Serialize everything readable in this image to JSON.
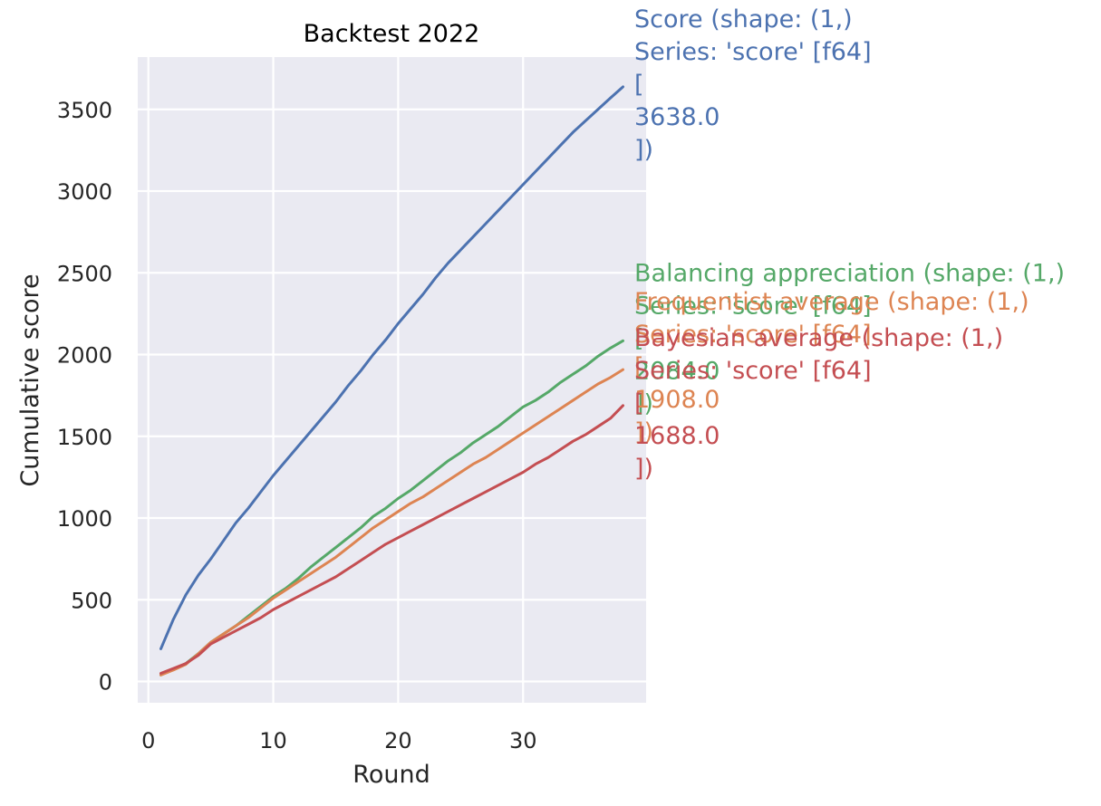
{
  "chart_data": {
    "type": "line",
    "title": "Backtest 2022",
    "xlabel": "Round",
    "ylabel": "Cumulative score",
    "xlim": [
      -0.85,
      39.85
    ],
    "ylim": [
      -130,
      3820
    ],
    "xticks": [
      0,
      10,
      20,
      30
    ],
    "yticks": [
      0,
      500,
      1000,
      1500,
      2000,
      2500,
      3000,
      3500
    ],
    "grid": true,
    "background": "#eaeaf2",
    "series": [
      {
        "name": "Score",
        "color": "#4c72b0",
        "x": [
          1,
          2,
          3,
          4,
          5,
          6,
          7,
          8,
          9,
          10,
          11,
          12,
          13,
          14,
          15,
          16,
          17,
          18,
          19,
          20,
          21,
          22,
          23,
          24,
          25,
          26,
          27,
          28,
          29,
          30,
          31,
          32,
          33,
          34,
          35,
          36,
          37,
          38
        ],
        "values": [
          200,
          380,
          530,
          650,
          750,
          860,
          970,
          1060,
          1160,
          1260,
          1350,
          1440,
          1530,
          1620,
          1710,
          1810,
          1900,
          2000,
          2090,
          2190,
          2280,
          2370,
          2470,
          2560,
          2640,
          2720,
          2800,
          2880,
          2960,
          3040,
          3120,
          3200,
          3280,
          3360,
          3430,
          3500,
          3570,
          3638
        ]
      },
      {
        "name": "Balancing appreciation",
        "color": "#55a868",
        "x": [
          1,
          2,
          3,
          4,
          5,
          6,
          7,
          8,
          9,
          10,
          11,
          12,
          13,
          14,
          15,
          16,
          17,
          18,
          19,
          20,
          21,
          22,
          23,
          24,
          25,
          26,
          27,
          28,
          29,
          30,
          31,
          32,
          33,
          34,
          35,
          36,
          37,
          38
        ],
        "values": [
          40,
          75,
          110,
          170,
          240,
          290,
          340,
          400,
          460,
          520,
          570,
          630,
          700,
          760,
          820,
          880,
          940,
          1010,
          1060,
          1120,
          1170,
          1230,
          1290,
          1350,
          1400,
          1460,
          1510,
          1560,
          1620,
          1680,
          1720,
          1770,
          1830,
          1880,
          1930,
          1990,
          2040,
          2084
        ]
      },
      {
        "name": "Frequentist average",
        "color": "#dd8452",
        "x": [
          1,
          2,
          3,
          4,
          5,
          6,
          7,
          8,
          9,
          10,
          11,
          12,
          13,
          14,
          15,
          16,
          17,
          18,
          19,
          20,
          21,
          22,
          23,
          24,
          25,
          26,
          27,
          28,
          29,
          30,
          31,
          32,
          33,
          34,
          35,
          36,
          37,
          38
        ],
        "values": [
          40,
          70,
          105,
          170,
          240,
          290,
          340,
          390,
          450,
          510,
          560,
          610,
          660,
          710,
          760,
          820,
          880,
          940,
          990,
          1040,
          1090,
          1130,
          1180,
          1230,
          1280,
          1330,
          1370,
          1420,
          1470,
          1520,
          1570,
          1620,
          1670,
          1720,
          1770,
          1820,
          1860,
          1908
        ]
      },
      {
        "name": "Bayesian average",
        "color": "#c44e52",
        "x": [
          1,
          2,
          3,
          4,
          5,
          6,
          7,
          8,
          9,
          10,
          11,
          12,
          13,
          14,
          15,
          16,
          17,
          18,
          19,
          20,
          21,
          22,
          23,
          24,
          25,
          26,
          27,
          28,
          29,
          30,
          31,
          32,
          33,
          34,
          35,
          36,
          37,
          38
        ],
        "values": [
          50,
          80,
          110,
          160,
          230,
          270,
          310,
          350,
          390,
          440,
          480,
          520,
          560,
          600,
          640,
          690,
          740,
          790,
          840,
          880,
          920,
          960,
          1000,
          1040,
          1080,
          1120,
          1160,
          1200,
          1240,
          1280,
          1330,
          1370,
          1420,
          1470,
          1510,
          1560,
          1610,
          1688
        ]
      }
    ],
    "annotations": [
      {
        "series": "Score",
        "color": "#4c72b0",
        "lines": [
          "Score (shape: (1,)",
          "Series: 'score' [f64]",
          "[",
          "\t3638.0",
          "])"
        ]
      },
      {
        "series": "Balancing appreciation",
        "color": "#55a868",
        "lines": [
          "Balancing appreciation (shape: (1,)",
          "Series: 'score' [f64]",
          "[",
          "\t2084.0",
          "])"
        ]
      },
      {
        "series": "Frequentist average",
        "color": "#dd8452",
        "lines": [
          "Frequentist average (shape: (1,)",
          "Series: 'score' [f64]",
          "[",
          "\t1908.0",
          "])"
        ]
      },
      {
        "series": "Bayesian average",
        "color": "#c44e52",
        "lines": [
          "Bayesian average (shape: (1,)",
          "Series: 'score' [f64]",
          "[",
          "\t1688.0",
          "])"
        ]
      }
    ]
  }
}
